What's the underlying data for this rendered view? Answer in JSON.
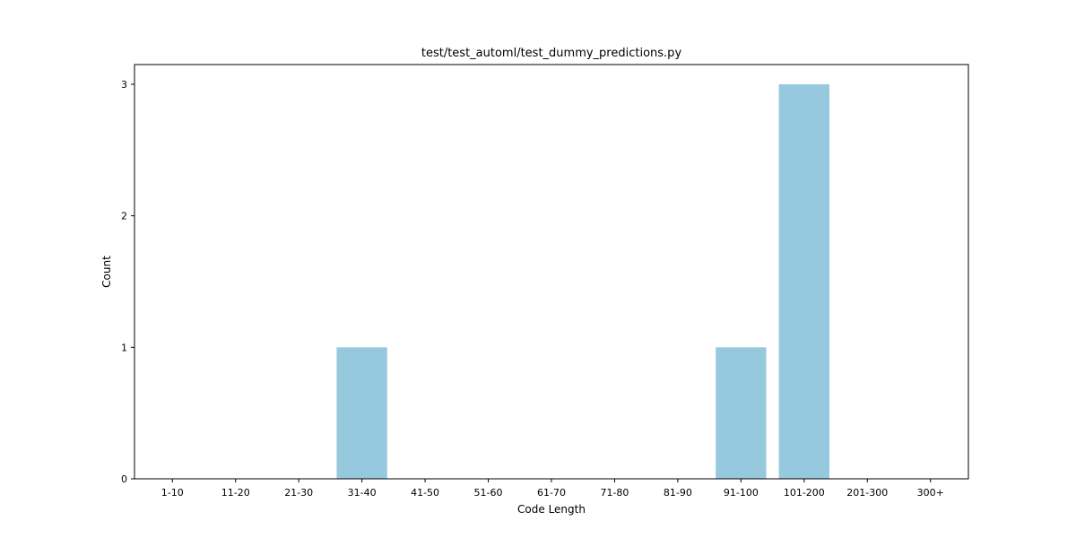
{
  "chart_data": {
    "type": "bar",
    "title": "test/test_automl/test_dummy_predictions.py",
    "xlabel": "Code Length",
    "ylabel": "Count",
    "categories": [
      "1-10",
      "11-20",
      "21-30",
      "31-40",
      "41-50",
      "51-60",
      "61-70",
      "71-80",
      "81-90",
      "91-100",
      "101-200",
      "201-300",
      "300+"
    ],
    "values": [
      0,
      0,
      0,
      1,
      0,
      0,
      0,
      0,
      0,
      1,
      3,
      0,
      0
    ],
    "yticks": [
      "0",
      "1",
      "2",
      "3"
    ],
    "ylim": [
      0,
      3.15
    ],
    "bar_color": "#96c9dd",
    "grid": false,
    "legend": false
  }
}
